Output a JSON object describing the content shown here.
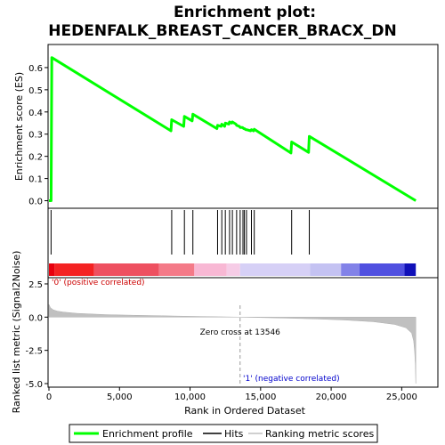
{
  "chart_data": {
    "type": "line",
    "title_line1": "Enrichment plot:",
    "title_line2": "HEDENFALK_BREAST_CANCER_BRACX_DN",
    "es_panel": {
      "ylabel": "Enrichment score (ES)",
      "ylim": [
        -0.03,
        0.7
      ],
      "yticks": [
        "0.0",
        "0.1",
        "0.2",
        "0.3",
        "0.4",
        "0.5",
        "0.6"
      ],
      "ytick_values": [
        0.0,
        0.1,
        0.2,
        0.3,
        0.4,
        0.5,
        0.6
      ],
      "series": [
        {
          "color": "#00ff00",
          "x": [
            0,
            150,
            200,
            8650,
            8700,
            9550,
            9600,
            10150,
            10200,
            11900,
            11950,
            12200,
            12250,
            12450,
            12500,
            12750,
            12800,
            12950,
            13000,
            13250,
            13300,
            13500,
            13550,
            13700,
            13750,
            13800,
            13850,
            13950,
            14000,
            14300,
            14350,
            14500,
            14550,
            17150,
            17200,
            18400,
            18450,
            26000
          ],
          "y": [
            0.0,
            0.0,
            0.645,
            0.315,
            0.365,
            0.335,
            0.38,
            0.36,
            0.39,
            0.325,
            0.34,
            0.335,
            0.345,
            0.335,
            0.35,
            0.345,
            0.355,
            0.35,
            0.355,
            0.345,
            0.34,
            0.335,
            0.33,
            0.33,
            0.328,
            0.325,
            0.325,
            0.32,
            0.32,
            0.315,
            0.32,
            0.315,
            0.322,
            0.215,
            0.265,
            0.218,
            0.29,
            0.0
          ]
        }
      ]
    },
    "hits": [
      150,
      8700,
      9600,
      10200,
      11950,
      12250,
      12500,
      12800,
      13000,
      13300,
      13550,
      13750,
      13850,
      14000,
      14350,
      14550,
      17200,
      18450
    ],
    "ranking_panel": {
      "ylabel": "Ranked list metric (Signal2Noise)",
      "ylim": [
        -5.2,
        2.9
      ],
      "yticks": [
        "2.5",
        "0.0",
        "-2.5",
        "-5.0"
      ],
      "ytick_values": [
        2.5,
        0.0,
        -2.5,
        -5.0
      ],
      "zero_cross_label": "Zero cross at 13546",
      "zero_cross": 13546,
      "positive_label": "'0' (positive correlated)",
      "negative_label": "'1' (negative correlated)",
      "positive_color": "#cc0000",
      "negative_color": "#0000cc",
      "profile": [
        [
          0,
          0.95
        ],
        [
          100,
          0.72
        ],
        [
          300,
          0.55
        ],
        [
          600,
          0.45
        ],
        [
          1000,
          0.38
        ],
        [
          2000,
          0.28
        ],
        [
          4000,
          0.19
        ],
        [
          6000,
          0.14
        ],
        [
          8000,
          0.1
        ],
        [
          10000,
          0.06
        ],
        [
          12000,
          0.03
        ],
        [
          13546,
          0.0
        ],
        [
          15000,
          -0.03
        ],
        [
          17000,
          -0.08
        ],
        [
          19000,
          -0.14
        ],
        [
          21000,
          -0.22
        ],
        [
          23000,
          -0.35
        ],
        [
          24500,
          -0.55
        ],
        [
          25300,
          -0.8
        ],
        [
          25700,
          -1.2
        ],
        [
          25850,
          -1.8
        ],
        [
          25920,
          -2.6
        ],
        [
          25970,
          -3.6
        ],
        [
          26000,
          -5.0
        ]
      ]
    },
    "color_bar_segments": [
      {
        "from": 0,
        "to": 400,
        "color": "#e8000e"
      },
      {
        "from": 400,
        "to": 3200,
        "color": "#f42222"
      },
      {
        "from": 3200,
        "to": 7800,
        "color": "#ee5060"
      },
      {
        "from": 7800,
        "to": 10300,
        "color": "#f47a88"
      },
      {
        "from": 10300,
        "to": 12600,
        "color": "#f8b8d4"
      },
      {
        "from": 12600,
        "to": 13546,
        "color": "#f6cce6"
      },
      {
        "from": 13546,
        "to": 18500,
        "color": "#d6d0f6"
      },
      {
        "from": 18500,
        "to": 20700,
        "color": "#c4c2f2"
      },
      {
        "from": 20700,
        "to": 22000,
        "color": "#8282e8"
      },
      {
        "from": 22000,
        "to": 25200,
        "color": "#5050e0"
      },
      {
        "from": 25200,
        "to": 26000,
        "color": "#1010b8"
      }
    ],
    "xaxis": {
      "xlabel": "Rank in Ordered Dataset",
      "xlim": [
        0,
        27500
      ],
      "xticks": [
        "0",
        "5,000",
        "10,000",
        "15,000",
        "20,000",
        "25,000"
      ],
      "xtick_values": [
        0,
        5000,
        10000,
        15000,
        20000,
        25000
      ]
    },
    "legend": {
      "items": [
        {
          "label": "Enrichment profile",
          "color": "#00ff00"
        },
        {
          "label": "Hits",
          "color": "#000000"
        },
        {
          "label": "Ranking metric scores",
          "color": "#c0c0c0"
        }
      ]
    }
  }
}
